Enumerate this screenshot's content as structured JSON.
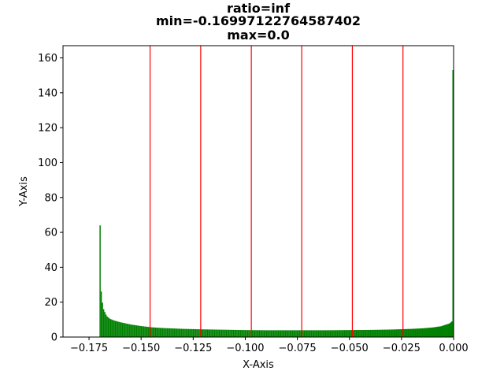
{
  "chart_data": {
    "type": "bar",
    "title_lines": [
      "ratio=inf",
      "min=-0.16997122764587402",
      "max=0.0"
    ],
    "xlabel": "X-Axis",
    "ylabel": "Y-Axis",
    "xlim": [
      -0.1875,
      0.0
    ],
    "ylim": [
      0,
      167
    ],
    "xticks": [
      -0.175,
      -0.15,
      -0.125,
      -0.1,
      -0.075,
      -0.05,
      -0.025,
      0.0
    ],
    "xtick_labels": [
      "−0.175",
      "−0.150",
      "−0.125",
      "−0.100",
      "−0.075",
      "−0.050",
      "−0.025",
      "0.000"
    ],
    "yticks": [
      0,
      20,
      40,
      60,
      80,
      100,
      120,
      140,
      160
    ],
    "ytick_labels": [
      "0",
      "20",
      "40",
      "60",
      "80",
      "100",
      "120",
      "140",
      "160"
    ],
    "bar_color": "#008000",
    "vline_color": "#ff0000",
    "vlines": [
      -0.1457,
      -0.1214,
      -0.0971,
      -0.0729,
      -0.0486,
      -0.0243
    ],
    "histogram": {
      "range": [
        -0.16997122764587402,
        0.0
      ],
      "points": [
        [
          -0.1699,
          64
        ],
        [
          -0.1692,
          27
        ],
        [
          -0.1686,
          20
        ],
        [
          -0.168,
          16
        ],
        [
          -0.1673,
          14
        ],
        [
          -0.1665,
          12
        ],
        [
          -0.165,
          10.5
        ],
        [
          -0.163,
          9.5
        ],
        [
          -0.16,
          8.5
        ],
        [
          -0.155,
          7.2
        ],
        [
          -0.15,
          6.3
        ],
        [
          -0.145,
          5.6
        ],
        [
          -0.14,
          5.2
        ],
        [
          -0.13,
          4.7
        ],
        [
          -0.12,
          4.4
        ],
        [
          -0.11,
          4.2
        ],
        [
          -0.1,
          4.0
        ],
        [
          -0.09,
          3.9
        ],
        [
          -0.08,
          3.9
        ],
        [
          -0.07,
          3.9
        ],
        [
          -0.06,
          3.9
        ],
        [
          -0.05,
          4.0
        ],
        [
          -0.04,
          4.1
        ],
        [
          -0.03,
          4.3
        ],
        [
          -0.02,
          4.7
        ],
        [
          -0.015,
          5.0
        ],
        [
          -0.01,
          5.5
        ],
        [
          -0.006,
          6.2
        ],
        [
          -0.004,
          7.0
        ],
        [
          -0.002,
          7.8
        ],
        [
          -0.0008,
          9.0
        ],
        [
          -0.0003,
          153
        ]
      ]
    }
  }
}
